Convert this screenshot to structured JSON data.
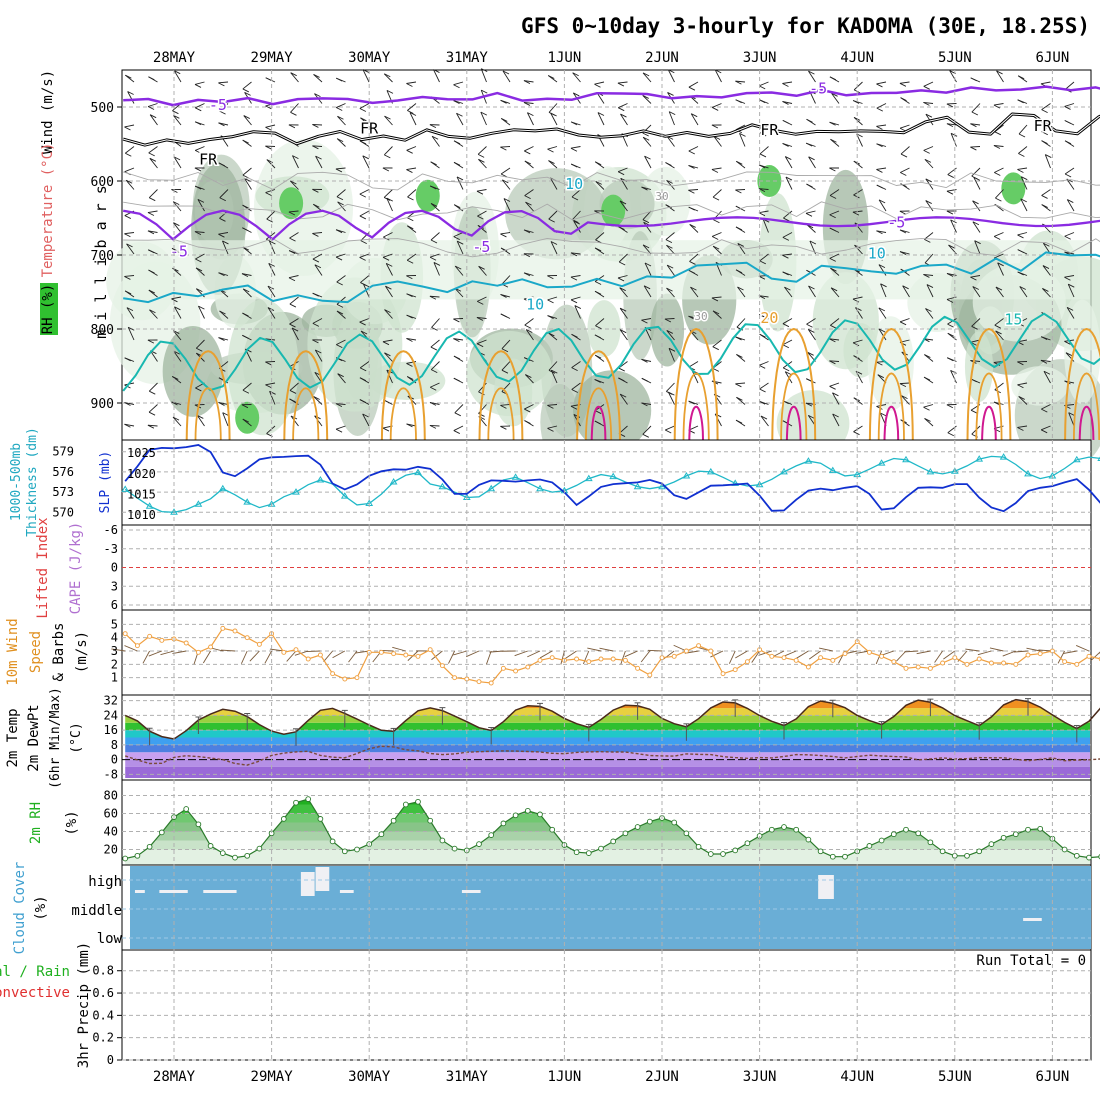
{
  "title": "GFS 0~10day 3-hourly for KADOMA (30E, 18.25S)",
  "run_total": "Run Total = 0",
  "dates": [
    "28MAY",
    "29MAY",
    "30MAY",
    "31MAY",
    "1JUN",
    "2JUN",
    "3JUN",
    "4JUN",
    "5JUN",
    "6JUN"
  ],
  "colors": {
    "purple": "#8a2be2",
    "cyan": "#1aa8c8",
    "teal": "#18b8b0",
    "orange": "#e8a030",
    "magenta": "#d01890",
    "blue": "#1030d0",
    "thick_cyan": "#30b8c8",
    "cloud": "#6aaed6",
    "rh_green": "#30c030",
    "wind_orange": "#f0a040"
  },
  "chart_data": [
    {
      "type": "heatmap",
      "id": "upper_air",
      "ylabel": "m i l l i b a r s",
      "side_labels": [
        "Wind (m/s)",
        "Temperature (°C)",
        "RH (%)"
      ],
      "y_ticks": [
        500,
        600,
        700,
        800,
        900
      ],
      "ylim": [
        1000,
        450
      ],
      "contour_labels": [
        {
          "text": "-5",
          "day": 0.45,
          "p": 497
        },
        {
          "text": "-5",
          "day": 6.6,
          "p": 475
        },
        {
          "text": "FR",
          "day": 0.35,
          "p": 571
        },
        {
          "text": "FR",
          "day": 2.0,
          "p": 529
        },
        {
          "text": "FR",
          "day": 6.1,
          "p": 531
        },
        {
          "text": "FR",
          "day": 8.9,
          "p": 526
        },
        {
          "text": "-5",
          "day": 0.05,
          "p": 695
        },
        {
          "text": "-5",
          "day": 3.15,
          "p": 689
        },
        {
          "text": "-5",
          "day": 7.4,
          "p": 656
        },
        {
          "text": "10",
          "day": 7.2,
          "p": 698
        },
        {
          "text": "10",
          "day": 3.7,
          "p": 767
        },
        {
          "text": "15",
          "day": 8.6,
          "p": 787
        },
        {
          "text": "20",
          "day": 6.1,
          "p": 785
        },
        {
          "text": "10",
          "day": 4.1,
          "p": 604
        },
        {
          "text": "30",
          "day": 5.0,
          "p": 619
        },
        {
          "text": "30",
          "day": 5.4,
          "p": 781
        }
      ]
    },
    {
      "type": "line",
      "id": "thickness_slp",
      "ylabel_left": "Thickness (dm)",
      "ylabel_left2": "1000-500mb",
      "ylabel_right": "SLP (mb)",
      "y_ticks_left": [
        570,
        573,
        576,
        579
      ],
      "y_ticks_right": [
        1010,
        1015,
        1020,
        1025
      ],
      "ylim_left": [
        569,
        580
      ],
      "series": [
        {
          "name": "1000-500mb",
          "axis": "left",
          "values": [
            573.4,
            572.1,
            570.9,
            570.1,
            570.0,
            570.4,
            571.2,
            572.0,
            573.5,
            572.6,
            571.5,
            570.7,
            571.2,
            572.3,
            573.0,
            574.1,
            574.8,
            574.2,
            572.4,
            571.1,
            571.3,
            572.7,
            574.5,
            575.5,
            575.9,
            574.2,
            573.8,
            573.0,
            572.2,
            572.3,
            573.5,
            574.8,
            575.2,
            574.4,
            573.5,
            573.0,
            573.2,
            574.0,
            575.0,
            575.6,
            575.3,
            574.5,
            573.8,
            573.5,
            573.8,
            574.5,
            575.4,
            576.1,
            576.0,
            575.2,
            574.3,
            573.9,
            574.1,
            574.9,
            576.0,
            576.9,
            577.6,
            577.3,
            576.2,
            575.4,
            575.6,
            576.4,
            577.3,
            578.0,
            577.8,
            576.9,
            576.0,
            575.7,
            576.1,
            576.9,
            577.9,
            578.3,
            578.2,
            577.1,
            575.7,
            575.0,
            575.4,
            576.5,
            577.8,
            578.2,
            578.0,
            576.8,
            575.5,
            575.3,
            575.6,
            576.6,
            577.8,
            578.5,
            578.0,
            577.1,
            576.0,
            575.6,
            575.9,
            575.6,
            575.6,
            573.3,
            573.6
          ]
        },
        {
          "name": "SLP",
          "axis": "right",
          "values": [
            1018.2,
            1021.8,
            1025.8,
            1026.3,
            1026.2,
            1026.5,
            1027.0,
            1025.3,
            1020.3,
            1019.4,
            1021.3,
            1023.5,
            1024.0,
            1024.1,
            1024.3,
            1024.4,
            1022.2,
            1017.6,
            1016.2,
            1017.4,
            1019.5,
            1020.6,
            1021.1,
            1021.0,
            1021.7,
            1021.2,
            1018.6,
            1015.1,
            1015.1,
            1017.3,
            1018.4,
            1018.3,
            1018.1,
            1018.4,
            1018.6,
            1017.9,
            1015.5,
            1012.4,
            1014.5,
            1016.8,
            1017.5,
            1017.7,
            1017.9,
            1018.5,
            1017.6,
            1014.8,
            1013.9,
            1015.5,
            1017.1,
            1017.2,
            1017.4,
            1017.6,
            1014.7,
            1011.0,
            1011.1,
            1013.7,
            1015.9,
            1016.4,
            1016.0,
            1016.6,
            1017.0,
            1015.1,
            1011.3,
            1011.6,
            1014.3,
            1016.6,
            1016.7,
            1016.6,
            1017.5,
            1017.5,
            1014.2,
            1011.8,
            1010.9,
            1012.9,
            1015.8,
            1016.6,
            1017.0,
            1017.9,
            1018.7,
            1016.1,
            1012.7,
            1012.7,
            1014.9,
            1017.1,
            1017.6,
            1017.2,
            1017.9,
            1018.7,
            1017.1,
            1015.3,
            1017.3,
            1020.3,
            1021.5,
            1021.8,
            1022.6,
            1023.3,
            1023.4
          ]
        }
      ]
    },
    {
      "type": "line",
      "id": "lifted_cape",
      "ylabel": "Lifted Index",
      "ylabel2": "CAPE (J/kg)",
      "y_ticks": [
        6,
        3,
        0,
        -3,
        -6
      ],
      "y_tick_labels": [
        "-6",
        "-3",
        "0",
        "3",
        "6"
      ],
      "ylim": [
        6,
        -6
      ]
    },
    {
      "type": "line",
      "id": "wind10m",
      "ylabel": "10m Wind",
      "ylabel2": "Speed",
      "ylabel3": "& Barbs",
      "ylabel4": "(m/s)",
      "y_ticks": [
        1,
        2,
        3,
        4,
        5
      ],
      "ylim": [
        0,
        6
      ],
      "series": [
        {
          "name": "10m Wind Speed",
          "values": [
            4.3,
            3.4,
            4.1,
            3.8,
            3.9,
            3.6,
            2.9,
            3.3,
            4.7,
            4.5,
            4.0,
            3.5,
            4.3,
            2.9,
            3.1,
            2.4,
            2.7,
            1.3,
            0.9,
            1.0,
            2.9,
            2.9,
            2.8,
            2.7,
            2.6,
            3.1,
            1.9,
            1.0,
            0.9,
            0.7,
            0.6,
            1.7,
            1.5,
            1.8,
            2.3,
            2.5,
            2.3,
            2.4,
            2.2,
            2.4,
            2.4,
            2.3,
            1.7,
            1.2,
            2.5,
            2.6,
            3.0,
            3.4,
            3.0,
            1.3,
            1.6,
            2.2,
            3.1,
            2.6,
            2.5,
            2.3,
            1.8,
            2.5,
            2.3,
            2.8,
            3.7,
            2.9,
            2.6,
            2.2,
            1.7,
            1.8,
            1.7,
            2.1,
            2.5,
            2.0,
            2.4,
            2.1,
            2.1,
            2.0,
            2.7,
            2.8,
            3.0,
            2.2,
            2.0,
            2.6,
            2.4,
            2.5,
            3.2,
            3.5,
            3.0,
            2.1,
            3.1,
            4.4,
            5.3,
            5.4,
            5.1,
            4.0,
            4.8,
            4.8,
            4.3,
            3.9,
            3.6
          ]
        }
      ]
    },
    {
      "type": "area",
      "id": "temp2m",
      "ylabel": "2m Temp",
      "ylabel2": "2m DewPt",
      "ylabel3": "(6hr Min/Max)",
      "ylabel4": "(°C)",
      "y_ticks": [
        -8,
        0,
        8,
        16,
        24,
        32
      ],
      "ylim": [
        -10,
        34
      ],
      "series": [
        {
          "name": "2m Temp",
          "values": [
            24.0,
            21.0,
            15.4,
            12.5,
            11.2,
            15.7,
            21.5,
            24.7,
            27.3,
            26.3,
            23.4,
            19.0,
            15.5,
            13.8,
            15.1,
            21.3,
            26.8,
            27.8,
            25.1,
            22.0,
            18.8,
            15.9,
            15.3,
            21.2,
            26.5,
            28.1,
            26.6,
            23.6,
            20.6,
            17.3,
            15.8,
            20.6,
            26.9,
            29.2,
            28.9,
            26.3,
            22.4,
            19.5,
            17.5,
            21.8,
            26.9,
            29.5,
            29.2,
            27.3,
            22.4,
            19.5,
            17.8,
            22.2,
            28.1,
            31.3,
            30.8,
            27.8,
            23.9,
            20.8,
            18.5,
            22.1,
            28.8,
            31.8,
            30.6,
            28.2,
            24.0,
            21.2,
            19.0,
            23.4,
            29.5,
            32.3,
            31.2,
            28.1,
            23.9,
            21.1,
            18.4,
            23.2,
            29.7,
            32.6,
            31.5,
            28.5,
            24.3,
            20.2,
            16.9,
            20.8,
            28.4,
            31.6,
            31.3,
            29.2,
            26.3,
            22.8,
            18.4,
            21.5,
            27.9,
            31.8,
            31.0,
            27.9,
            24.1,
            21.1,
            19.5,
            19.2,
            17.8
          ]
        },
        {
          "name": "2m DewPt",
          "values": [
            2.0,
            -0.2,
            -2.1,
            -2.0,
            1.2,
            2.1,
            1.6,
            0.8,
            0.0,
            -2.1,
            -3.0,
            -0.8,
            2.3,
            3.5,
            4.2,
            4.5,
            2.3,
            1.3,
            1.0,
            3.3,
            5.9,
            7.2,
            6.9,
            5.3,
            4.8,
            3.3,
            2.7,
            3.1,
            4.0,
            4.3,
            4.5,
            4.7,
            4.6,
            4.4,
            4.1,
            3.4,
            3.2,
            3.9,
            4.2,
            4.3,
            4.1,
            4.1,
            3.2,
            2.2,
            2.0,
            1.9,
            3.1,
            2.8,
            2.7,
            1.6,
            1.1,
            0.7,
            1.1,
            0.9,
            1.7,
            2.7,
            2.6,
            2.2,
            1.7,
            0.9,
            1.7,
            2.4,
            2.0,
            1.7,
            1.4,
            -0.1,
            0.3,
            0.9,
            0.4,
            0.5,
            1.1,
            1.0,
            1.0,
            0.1,
            -0.6,
            0.1,
            0.9,
            -0.6,
            -0.3,
            -0.1,
            0.4,
            -0.6,
            -0.8,
            0.5,
            1.5,
            2.2,
            1.3,
            0.2,
            -0.5,
            -0.7,
            0.1,
            3.7,
            5.6,
            7.3,
            9.5,
            11.6,
            12.9
          ]
        }
      ]
    },
    {
      "type": "area",
      "id": "rh2m",
      "ylabel": "2m RH",
      "ylabel2": "(%)",
      "y_ticks": [
        20,
        40,
        60,
        80
      ],
      "ylim": [
        5,
        95
      ],
      "series": [
        {
          "name": "2m RH",
          "values": [
            10,
            13,
            23,
            39,
            56,
            65,
            48,
            24,
            16,
            11,
            13,
            21,
            38,
            54,
            72,
            76,
            54,
            29,
            18,
            20,
            26,
            37,
            52,
            70,
            73,
            52,
            30,
            21,
            19,
            26,
            36,
            49,
            58,
            63,
            59,
            42,
            25,
            17,
            16,
            21,
            29,
            38,
            45,
            51,
            55,
            50,
            38,
            23,
            15,
            15,
            19,
            27,
            35,
            42,
            45,
            42,
            31,
            18,
            12,
            12,
            18,
            24,
            30,
            37,
            42,
            38,
            28,
            18,
            13,
            13,
            18,
            26,
            33,
            37,
            42,
            43,
            32,
            20,
            13,
            11,
            12,
            19,
            26,
            33,
            37,
            41,
            40,
            35,
            24,
            15,
            13,
            16,
            21,
            42,
            64,
            82,
            81
          ]
        }
      ]
    },
    {
      "type": "area",
      "id": "cloud",
      "ylabel": "Cloud Cover",
      "ylabel2": "(%)",
      "level_labels": [
        "high",
        "middle",
        "low"
      ]
    },
    {
      "type": "bar",
      "id": "precip",
      "ylabel": "3hr Precip (mm)",
      "ylabel_total": "Total / Rain",
      "ylabel_conv": "Convective",
      "y_ticks": [
        0,
        0.2,
        0.4,
        0.6,
        0.8
      ],
      "ylim": [
        0,
        0.95
      ],
      "values": []
    }
  ]
}
